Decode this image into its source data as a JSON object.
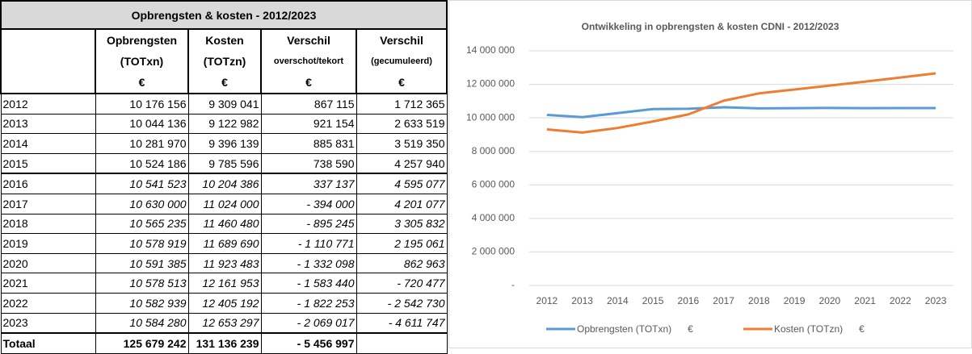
{
  "table": {
    "title": "Opbrengsten & kosten - 2012/2023",
    "columns": [
      {
        "name": "Opbrengsten",
        "sub": "(TOTxn)",
        "unit": "€"
      },
      {
        "name": "Kosten",
        "sub": "(TOTzn)",
        "unit": "€"
      },
      {
        "name": "Verschil",
        "sub": "overschot/tekort",
        "unit": "€"
      },
      {
        "name": "Verschil",
        "sub": "(gecumuleerd)",
        "unit": "€"
      }
    ],
    "rows": [
      {
        "label": "2012",
        "cells": [
          "10 176 156",
          "9 309 041",
          "867 115",
          "1 712 365"
        ]
      },
      {
        "label": "2013",
        "cells": [
          "10 044 136",
          "9 122 982",
          "921 154",
          "2 633 519"
        ]
      },
      {
        "label": "2014",
        "cells": [
          "10 281 970",
          "9 396 139",
          "885 831",
          "3 519 350"
        ]
      },
      {
        "label": "2015",
        "cells": [
          "10 524 186",
          "9 785 596",
          "738 590",
          "4 257 940"
        ]
      },
      {
        "label": "2016",
        "cells": [
          "10 541 523",
          "10 204 386",
          "337 137",
          "4 595 077"
        ]
      },
      {
        "label": "2017",
        "cells": [
          "10 630 000",
          "11 024 000",
          "- 394 000",
          "4 201 077"
        ]
      },
      {
        "label": "2018",
        "cells": [
          "10 565 235",
          "11 460 480",
          "- 895 245",
          "3 305 832"
        ]
      },
      {
        "label": "2019",
        "cells": [
          "10 578 919",
          "11 689 690",
          "- 1 110 771",
          "2 195 061"
        ]
      },
      {
        "label": "2020",
        "cells": [
          "10 591 385",
          "11 923 483",
          "- 1 332 098",
          "862 963"
        ]
      },
      {
        "label": "2021",
        "cells": [
          "10 578 513",
          "12 161 953",
          "- 1 583 440",
          "- 720 477"
        ]
      },
      {
        "label": "2022",
        "cells": [
          "10 582 939",
          "12 405 192",
          "- 1 822 253",
          "- 2 542 730"
        ]
      },
      {
        "label": "2023",
        "cells": [
          "10 584 280",
          "12 653 297",
          "- 2 069 017",
          "- 4 611 747"
        ]
      }
    ],
    "total": {
      "label": "Totaal",
      "cells": [
        "125 679 242",
        "131 136 239",
        "- 5 456 997"
      ]
    }
  },
  "chart_data": {
    "type": "line",
    "title": "Ontwikkeling in opbrengsten & kosten CDNI - 2012/2023",
    "categories": [
      "2012",
      "2013",
      "2014",
      "2015",
      "2016",
      "2017",
      "2018",
      "2019",
      "2020",
      "2021",
      "2022",
      "2023"
    ],
    "series": [
      {
        "name": "Opbrengsten (TOTxn)      €",
        "color": "#5b9bd5",
        "values": [
          10176156,
          10044136,
          10281970,
          10524186,
          10541523,
          10630000,
          10565235,
          10578919,
          10591385,
          10578513,
          10582939,
          10584280
        ]
      },
      {
        "name": "Kosten (TOTzn)      €",
        "color": "#ed7d31",
        "values": [
          9309041,
          9122982,
          9396139,
          9785596,
          10204386,
          11024000,
          11460480,
          11689690,
          11923483,
          12161953,
          12405192,
          12653297
        ]
      }
    ],
    "ylim": [
      0,
      14000000
    ],
    "yticks": [
      {
        "value": 0,
        "label": "-"
      },
      {
        "value": 2000000,
        "label": "2 000 000"
      },
      {
        "value": 4000000,
        "label": "4 000 000"
      },
      {
        "value": 6000000,
        "label": "6 000 000"
      },
      {
        "value": 8000000,
        "label": "8 000 000"
      },
      {
        "value": 10000000,
        "label": "10 000 000"
      },
      {
        "value": 12000000,
        "label": "12 000 000"
      },
      {
        "value": 14000000,
        "label": "14 000 000"
      }
    ],
    "grid": true,
    "legend": "bottom"
  }
}
